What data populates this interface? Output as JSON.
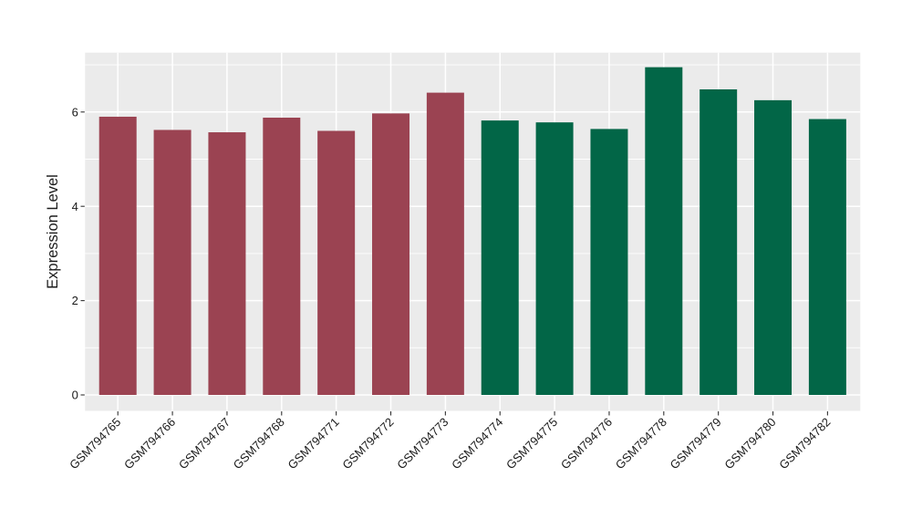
{
  "chart_data": {
    "type": "bar",
    "title": "",
    "xlabel": "",
    "ylabel": "Expression Level",
    "categories": [
      "GSM794765",
      "GSM794766",
      "GSM794767",
      "GSM794768",
      "GSM794771",
      "GSM794772",
      "GSM794773",
      "GSM794774",
      "GSM794775",
      "GSM794776",
      "GSM794778",
      "GSM794779",
      "GSM794780",
      "GSM794782"
    ],
    "values": [
      5.9,
      5.62,
      5.57,
      5.88,
      5.6,
      5.97,
      6.41,
      5.82,
      5.78,
      5.64,
      6.95,
      6.48,
      6.25,
      5.85
    ],
    "bar_groups": [
      "group-1",
      "group-1",
      "group-1",
      "group-1",
      "group-1",
      "group-1",
      "group-1",
      "group-2",
      "group-2",
      "group-2",
      "group-2",
      "group-2",
      "group-2",
      "group-2"
    ],
    "group_colors": {
      "group-1": "#9B4352",
      "group-2": "#026647"
    },
    "ylim": [
      0,
      7.3
    ],
    "yticks": [
      0,
      2,
      4,
      6
    ],
    "yticks_minor": [
      1,
      3,
      5,
      7
    ],
    "x_label_rotation": 45,
    "grid": true,
    "legend_position": "none",
    "panel_background": "#EBEBEB",
    "gridline_color": "#FFFFFF",
    "axis_text_color": "#1A1A1A",
    "tick_mark_color": "#333333"
  }
}
